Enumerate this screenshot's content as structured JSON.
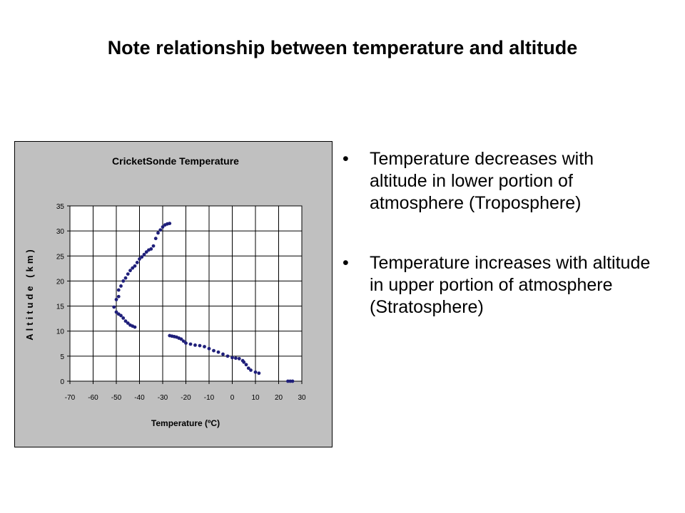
{
  "slide": {
    "title": "Note relationship between temperature and altitude",
    "bullets": [
      "Temperature decreases with altitude in lower portion of atmosphere (Troposphere)",
      "Temperature increases with altitude in upper portion of atmosphere (Stratosphere)"
    ]
  },
  "colors": {
    "series": "#1f1f7a",
    "plot_bg": "#c0c0c0",
    "frame": "#000000"
  },
  "chart_data": {
    "type": "scatter",
    "title": "CricketSonde Temperature",
    "xlabel": "Temperature (ºC)",
    "ylabel": "Altitude (km)",
    "xlim": [
      -70,
      30
    ],
    "ylim": [
      0,
      35
    ],
    "xticks": [
      -70,
      -60,
      -50,
      -40,
      -30,
      -20,
      -10,
      0,
      10,
      20,
      30
    ],
    "yticks": [
      0,
      5,
      10,
      15,
      20,
      25,
      30,
      35
    ],
    "grid": true,
    "legend": "none",
    "series": [
      {
        "x": [
          24,
          25,
          26,
          11.5,
          10,
          8,
          7,
          6,
          5,
          4.5,
          3,
          1.5,
          0,
          -2,
          -4,
          -6,
          -8,
          -10,
          -12,
          -14,
          -16,
          -18,
          -20,
          -21,
          -22,
          -23,
          -24,
          -25,
          -26,
          -27,
          -42,
          -43,
          -44,
          -45,
          -46,
          -47,
          -48,
          -49,
          -50,
          -51,
          -50,
          -49,
          -49,
          -48,
          -47,
          -46,
          -45,
          -44,
          -43,
          -42,
          -41,
          -40,
          -39,
          -38,
          -37,
          -36,
          -35,
          -34,
          -33,
          -32,
          -31,
          -30,
          -29,
          -28,
          -27
        ],
        "y": [
          0,
          0,
          0,
          1.6,
          1.8,
          2.2,
          2.6,
          3.3,
          3.8,
          4.1,
          4.5,
          4.6,
          4.7,
          5.0,
          5.4,
          5.8,
          6.1,
          6.5,
          6.9,
          7.1,
          7.2,
          7.4,
          7.6,
          8.0,
          8.4,
          8.6,
          8.8,
          8.9,
          9.0,
          9.1,
          10.8,
          11.0,
          11.2,
          11.6,
          12.0,
          12.6,
          13.1,
          13.4,
          13.8,
          14.8,
          16.3,
          16.9,
          18.2,
          19.0,
          20.0,
          20.6,
          21.4,
          22.1,
          22.6,
          23.0,
          23.7,
          24.4,
          24.8,
          25.3,
          25.8,
          26.2,
          26.4,
          27.0,
          28.5,
          29.6,
          30.2,
          30.8,
          31.2,
          31.4,
          31.5
        ]
      }
    ]
  }
}
